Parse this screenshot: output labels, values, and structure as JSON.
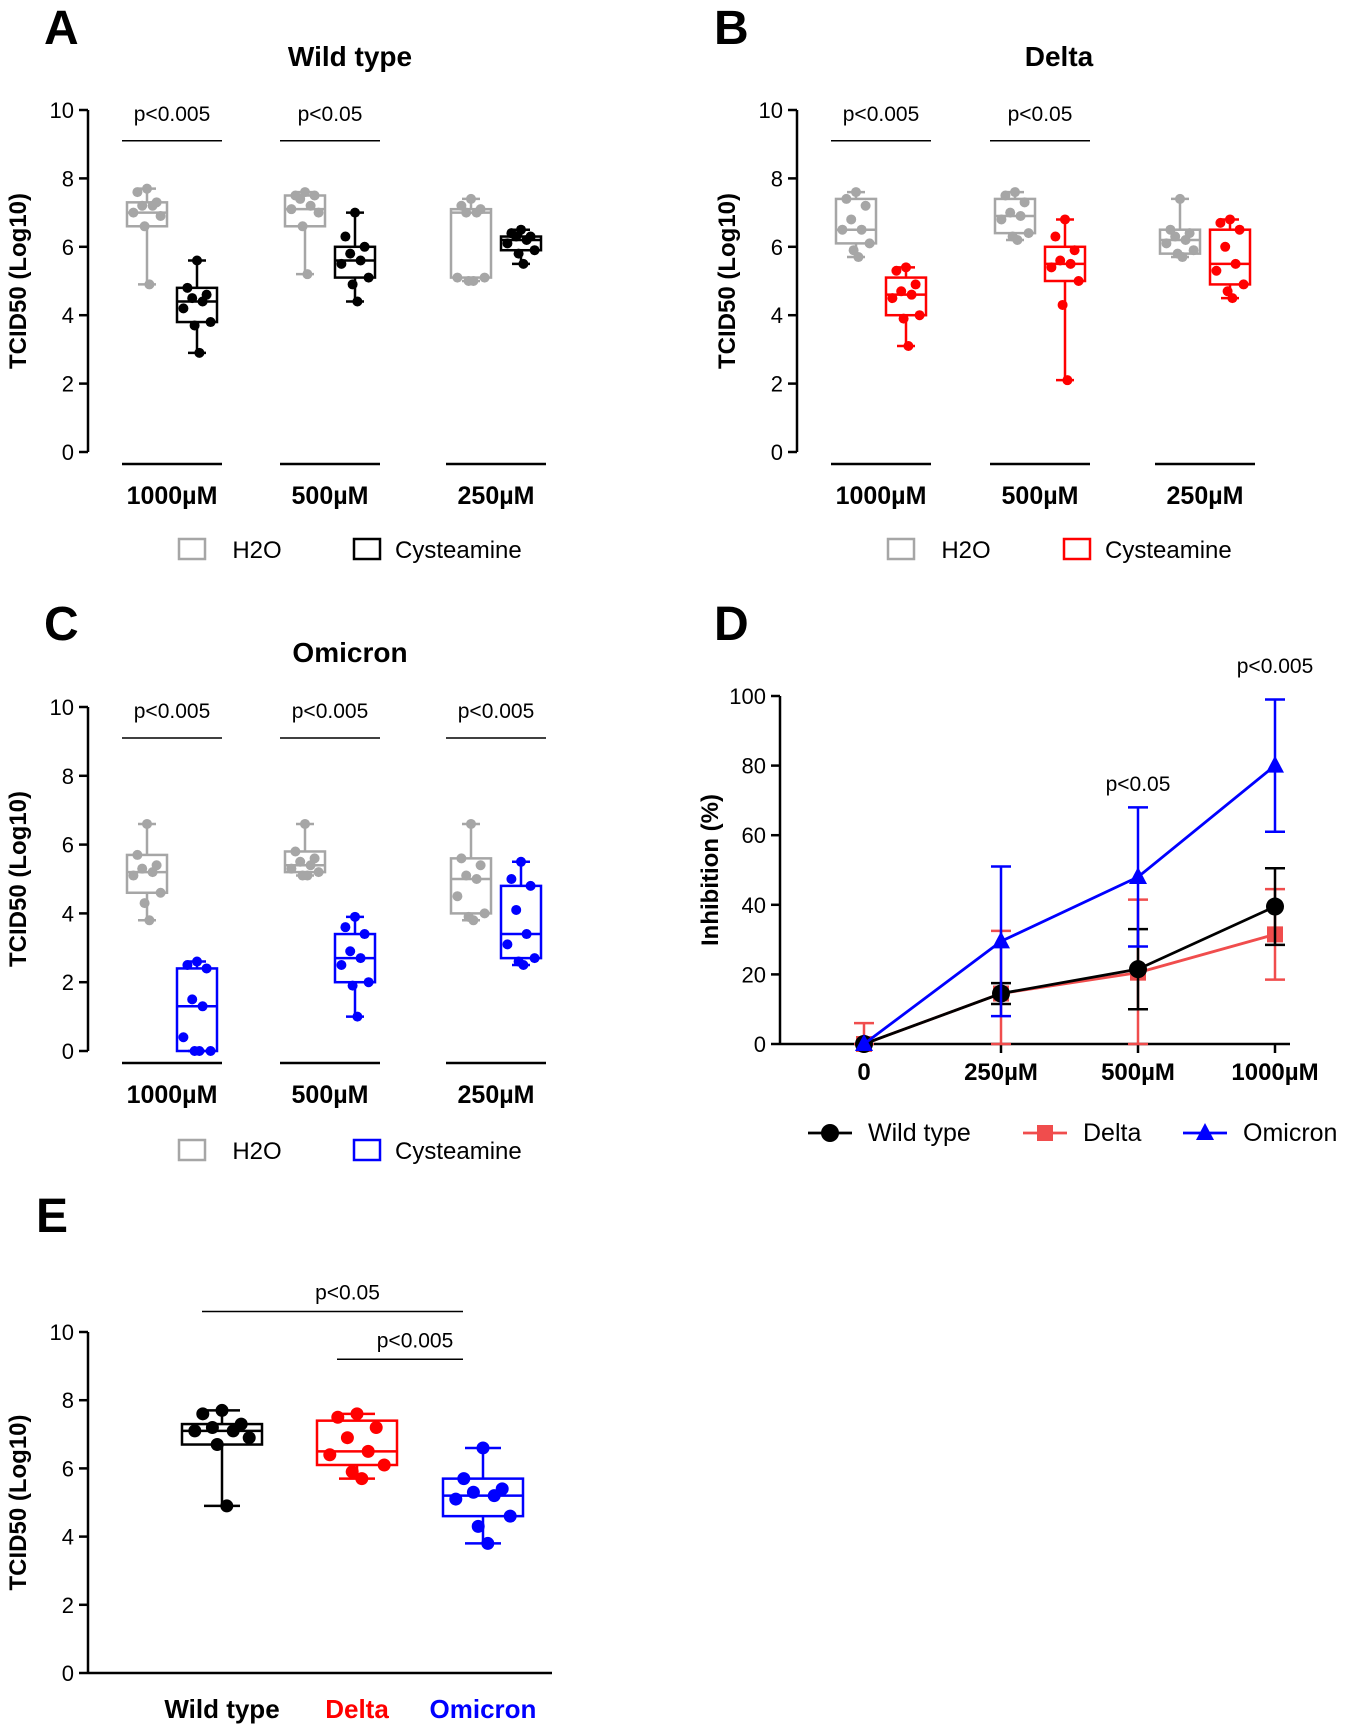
{
  "chart_data": [
    {
      "panel": "A",
      "type": "box",
      "title": "Wild type",
      "ylabel": "TCID50 (Log10)",
      "ylim": [
        0,
        10
      ],
      "yticks": [
        "0",
        "2",
        "4",
        "6",
        "8",
        "10"
      ],
      "categories": [
        "1000µM",
        "500µM",
        "250µM"
      ],
      "legend": [
        "H2O",
        "Cysteamine"
      ],
      "colors": {
        "control": "#a6a6a6",
        "treated": "#000000"
      },
      "boxes": [
        {
          "group": 0,
          "series": "H2O",
          "min": 4.9,
          "q1": 6.6,
          "median": 7.0,
          "q3": 7.3,
          "max": 7.7,
          "points": [
            7.7,
            7.6,
            7.3,
            7.2,
            7.2,
            7.0,
            6.9,
            6.6,
            4.9
          ]
        },
        {
          "group": 0,
          "series": "Cysteamine",
          "min": 2.9,
          "q1": 3.8,
          "median": 4.4,
          "q3": 4.8,
          "max": 5.6,
          "points": [
            5.6,
            4.8,
            4.6,
            4.5,
            4.4,
            4.2,
            3.8,
            3.7,
            2.9
          ]
        },
        {
          "group": 1,
          "series": "H2O",
          "min": 5.2,
          "q1": 6.6,
          "median": 7.1,
          "q3": 7.5,
          "max": 7.6,
          "points": [
            7.6,
            7.5,
            7.5,
            7.4,
            7.2,
            7.1,
            7.0,
            6.6,
            5.2
          ]
        },
        {
          "group": 1,
          "series": "Cysteamine",
          "min": 4.4,
          "q1": 5.1,
          "median": 5.6,
          "q3": 6.0,
          "max": 7.0,
          "points": [
            7.0,
            6.3,
            6.0,
            5.8,
            5.6,
            5.5,
            5.1,
            4.9,
            4.4
          ]
        },
        {
          "group": 2,
          "series": "H2O",
          "min": 5.0,
          "q1": 5.1,
          "median": 7.0,
          "q3": 7.1,
          "max": 7.4,
          "points": [
            7.4,
            7.2,
            7.1,
            7.0,
            7.0,
            5.1,
            5.1,
            5.0,
            5.0
          ]
        },
        {
          "group": 2,
          "series": "Cysteamine",
          "min": 5.5,
          "q1": 5.9,
          "median": 6.2,
          "q3": 6.3,
          "max": 6.5,
          "points": [
            6.5,
            6.4,
            6.3,
            6.3,
            6.2,
            6.1,
            5.9,
            5.8,
            5.5
          ]
        }
      ],
      "annotations": [
        {
          "group": 0,
          "text": "p<0.005"
        },
        {
          "group": 1,
          "text": "p<0.05"
        }
      ]
    },
    {
      "panel": "B",
      "type": "box",
      "title": "Delta",
      "ylabel": "TCID50 (Log10)",
      "ylim": [
        0,
        10
      ],
      "yticks": [
        "0",
        "2",
        "4",
        "6",
        "8",
        "10"
      ],
      "categories": [
        "1000µM",
        "500µM",
        "250µM"
      ],
      "legend": [
        "H2O",
        "Cysteamine"
      ],
      "colors": {
        "control": "#a6a6a6",
        "treated": "#ff0000"
      },
      "boxes": [
        {
          "group": 0,
          "series": "H2O",
          "min": 5.7,
          "q1": 6.1,
          "median": 6.5,
          "q3": 7.4,
          "max": 7.6,
          "points": [
            7.6,
            7.4,
            7.2,
            6.8,
            6.5,
            6.5,
            6.1,
            5.9,
            5.7
          ]
        },
        {
          "group": 0,
          "series": "Cysteamine",
          "min": 3.1,
          "q1": 4.0,
          "median": 4.6,
          "q3": 5.1,
          "max": 5.4,
          "points": [
            5.4,
            5.3,
            4.9,
            4.7,
            4.6,
            4.5,
            4.0,
            3.9,
            3.1
          ]
        },
        {
          "group": 1,
          "series": "H2O",
          "min": 6.2,
          "q1": 6.4,
          "median": 6.9,
          "q3": 7.4,
          "max": 7.6,
          "points": [
            7.6,
            7.5,
            7.3,
            7.0,
            6.9,
            6.8,
            6.4,
            6.3,
            6.2
          ]
        },
        {
          "group": 1,
          "series": "Cysteamine",
          "min": 2.1,
          "q1": 5.0,
          "median": 5.5,
          "q3": 6.0,
          "max": 6.8,
          "points": [
            6.8,
            6.3,
            5.9,
            5.6,
            5.5,
            5.4,
            5.0,
            4.3,
            2.1
          ]
        },
        {
          "group": 2,
          "series": "H2O",
          "min": 5.7,
          "q1": 5.8,
          "median": 6.2,
          "q3": 6.5,
          "max": 7.4,
          "points": [
            7.4,
            6.5,
            6.4,
            6.3,
            6.2,
            6.1,
            5.9,
            5.8,
            5.7
          ]
        },
        {
          "group": 2,
          "series": "Cysteamine",
          "min": 4.5,
          "q1": 4.9,
          "median": 5.5,
          "q3": 6.5,
          "max": 6.8,
          "points": [
            6.8,
            6.7,
            6.5,
            6.0,
            5.5,
            5.3,
            4.9,
            4.7,
            4.5
          ]
        }
      ],
      "annotations": [
        {
          "group": 0,
          "text": "p<0.005"
        },
        {
          "group": 1,
          "text": "p<0.05"
        }
      ]
    },
    {
      "panel": "C",
      "type": "box",
      "title": "Omicron",
      "ylabel": "TCID50 (Log10)",
      "ylim": [
        0,
        10
      ],
      "yticks": [
        "0",
        "2",
        "4",
        "6",
        "8",
        "10"
      ],
      "categories": [
        "1000µM",
        "500µM",
        "250µM"
      ],
      "legend": [
        "H2O",
        "Cysteamine"
      ],
      "colors": {
        "control": "#a6a6a6",
        "treated": "#0000ff"
      },
      "boxes": [
        {
          "group": 0,
          "series": "H2O",
          "min": 3.8,
          "q1": 4.6,
          "median": 5.2,
          "q3": 5.7,
          "max": 6.6,
          "points": [
            6.6,
            5.7,
            5.4,
            5.3,
            5.2,
            5.1,
            4.6,
            4.3,
            3.8
          ]
        },
        {
          "group": 0,
          "series": "Cysteamine",
          "min": 0.0,
          "q1": 0.0,
          "median": 1.3,
          "q3": 2.4,
          "max": 2.6,
          "points": [
            2.6,
            2.5,
            2.4,
            1.5,
            1.3,
            0.4,
            0.0,
            0.0,
            0.0
          ]
        },
        {
          "group": 1,
          "series": "H2O",
          "min": 5.1,
          "q1": 5.2,
          "median": 5.4,
          "q3": 5.8,
          "max": 6.6,
          "points": [
            6.6,
            5.8,
            5.6,
            5.5,
            5.4,
            5.3,
            5.2,
            5.1,
            5.1
          ]
        },
        {
          "group": 1,
          "series": "Cysteamine",
          "min": 1.0,
          "q1": 2.0,
          "median": 2.7,
          "q3": 3.4,
          "max": 3.9,
          "points": [
            3.9,
            3.6,
            3.4,
            2.9,
            2.7,
            2.5,
            2.0,
            1.9,
            1.0
          ]
        },
        {
          "group": 2,
          "series": "H2O",
          "min": 3.8,
          "q1": 4.0,
          "median": 5.0,
          "q3": 5.6,
          "max": 6.6,
          "points": [
            6.6,
            5.6,
            5.4,
            5.1,
            5.0,
            4.5,
            4.0,
            3.9,
            3.8
          ]
        },
        {
          "group": 2,
          "series": "Cysteamine",
          "min": 2.5,
          "q1": 2.7,
          "median": 3.4,
          "q3": 4.8,
          "max": 5.5,
          "points": [
            5.5,
            5.0,
            4.8,
            4.1,
            3.4,
            3.1,
            2.7,
            2.6,
            2.5
          ]
        }
      ],
      "annotations": [
        {
          "group": 0,
          "text": "p<0.005"
        },
        {
          "group": 1,
          "text": "p<0.005"
        },
        {
          "group": 2,
          "text": "p<0.005"
        }
      ]
    },
    {
      "panel": "D",
      "type": "line",
      "title": "",
      "ylabel": "Inhibition (%)",
      "ylim": [
        0,
        100
      ],
      "yticks": [
        "0",
        "20",
        "40",
        "60",
        "80",
        "100"
      ],
      "categories": [
        "0",
        "250µM",
        "500µM",
        "1000µM"
      ],
      "series": [
        {
          "name": "Wild type",
          "color": "#000000",
          "marker": "circle",
          "values": [
            0,
            14.5,
            21.5,
            39.5
          ],
          "err": [
            0,
            3,
            11.5,
            11
          ]
        },
        {
          "name": "Delta",
          "color": "#f04d4d",
          "marker": "square",
          "values": [
            0,
            14.5,
            20.5,
            31.5
          ],
          "err": [
            6,
            18,
            21,
            13
          ]
        },
        {
          "name": "Omicron",
          "color": "#0000ff",
          "marker": "triangle",
          "values": [
            0,
            29.5,
            48,
            80
          ],
          "err": [
            0,
            21.5,
            20,
            19
          ]
        }
      ],
      "annotations": [
        {
          "category": 2,
          "text": "p<0.05"
        },
        {
          "category": 3,
          "text": "p<0.005"
        }
      ]
    },
    {
      "panel": "E",
      "type": "box",
      "title": "",
      "ylabel": "TCID50 (Log10)",
      "ylim": [
        0,
        10
      ],
      "yticks": [
        "0",
        "2",
        "4",
        "6",
        "8",
        "10"
      ],
      "categories": [
        "Wild type",
        "Delta",
        "Omicron"
      ],
      "category_colors": [
        "#000000",
        "#ff0000",
        "#0000ff"
      ],
      "boxes": [
        {
          "group": 0,
          "min": 4.9,
          "q1": 6.7,
          "median": 7.1,
          "q3": 7.3,
          "max": 7.7,
          "points": [
            7.7,
            7.6,
            7.3,
            7.2,
            7.1,
            7.1,
            6.9,
            6.7,
            4.9
          ]
        },
        {
          "group": 1,
          "min": 5.7,
          "q1": 6.1,
          "median": 6.5,
          "q3": 7.4,
          "max": 7.6,
          "points": [
            7.6,
            7.5,
            7.2,
            6.9,
            6.5,
            6.4,
            6.1,
            5.9,
            5.7
          ]
        },
        {
          "group": 2,
          "min": 3.8,
          "q1": 4.6,
          "median": 5.2,
          "q3": 5.7,
          "max": 6.6,
          "points": [
            6.6,
            5.7,
            5.4,
            5.3,
            5.2,
            5.1,
            4.6,
            4.3,
            3.8
          ]
        }
      ],
      "annotations": [
        {
          "from": 0,
          "to": 2,
          "text": "p<0.05"
        },
        {
          "from": 1,
          "to": 2,
          "text": "p<0.005"
        }
      ]
    }
  ],
  "panel_labels": [
    "A",
    "B",
    "C",
    "D",
    "E"
  ]
}
